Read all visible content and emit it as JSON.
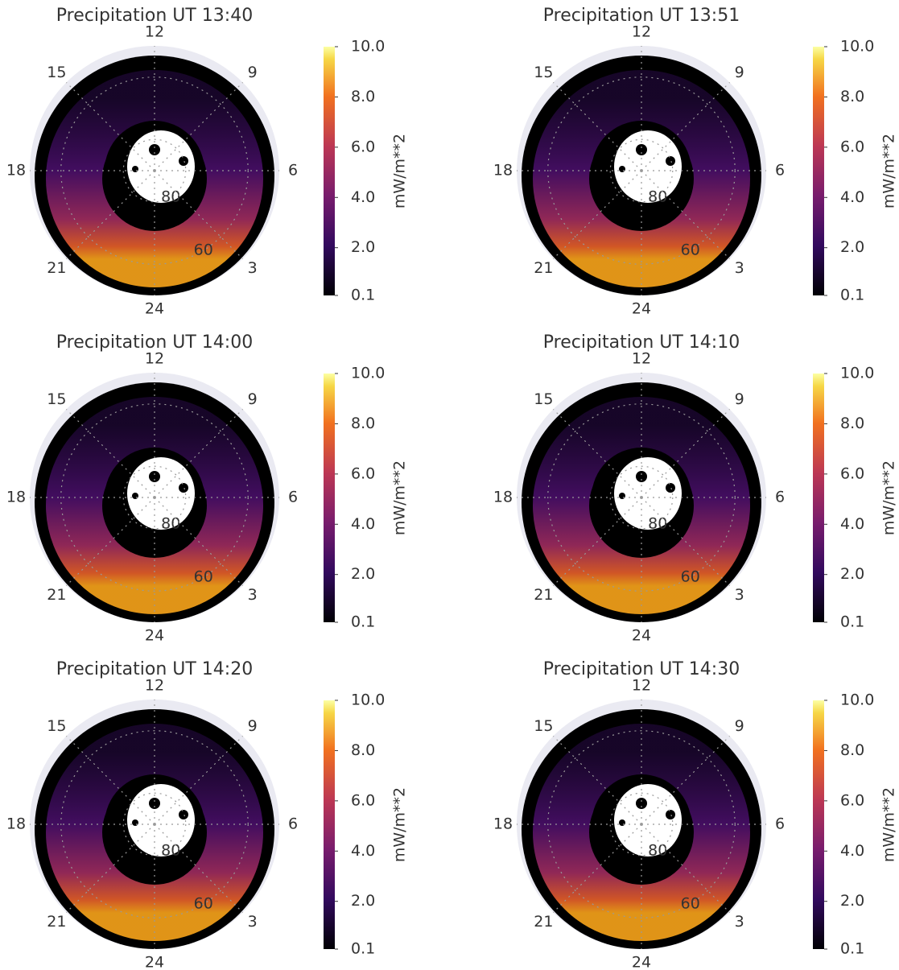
{
  "chart_data": [
    {
      "type": "polar-contour",
      "title": "Precipitation UT 13:40",
      "theta_ticks": [
        12,
        9,
        6,
        3,
        24,
        21,
        18,
        15
      ],
      "rlim": [
        90,
        50
      ],
      "rticks": [
        80,
        60
      ],
      "colorbar": {
        "label": "mW/m**2",
        "lim": [
          0.1,
          10.0
        ],
        "ticks": [
          0.1,
          {
            "value": 2,
            "label": "2.0"
          },
          {
            "value": 4,
            "label": "4.0"
          },
          {
            "value": 6,
            "label": "6.0"
          },
          {
            "value": 8,
            "label": "8.0"
          },
          {
            "value": 10,
            "label": "10.0"
          }
        ]
      }
    },
    {
      "type": "polar-contour",
      "title": "Precipitation UT 13:51",
      "theta_ticks": [
        12,
        9,
        6,
        3,
        24,
        21,
        18,
        15
      ],
      "rlim": [
        90,
        50
      ],
      "rticks": [
        80,
        60
      ],
      "colorbar": {
        "label": "mW/m**2",
        "lim": [
          0.1,
          10.0
        ],
        "ticks": [
          0.1,
          {
            "value": 2,
            "label": "2.0"
          },
          {
            "value": 4,
            "label": "4.0"
          },
          {
            "value": 6,
            "label": "6.0"
          },
          {
            "value": 8,
            "label": "8.0"
          },
          {
            "value": 10,
            "label": "10.0"
          }
        ]
      }
    },
    {
      "type": "polar-contour",
      "title": "Precipitation UT 14:00",
      "theta_ticks": [
        12,
        9,
        6,
        3,
        24,
        21,
        18,
        15
      ],
      "rlim": [
        90,
        50
      ],
      "rticks": [
        80,
        60
      ],
      "colorbar": {
        "label": "mW/m**2",
        "lim": [
          0.1,
          10.0
        ],
        "ticks": [
          0.1,
          {
            "value": 2,
            "label": "2.0"
          },
          {
            "value": 4,
            "label": "4.0"
          },
          {
            "value": 6,
            "label": "6.0"
          },
          {
            "value": 8,
            "label": "8.0"
          },
          {
            "value": 10,
            "label": "10.0"
          }
        ]
      }
    },
    {
      "type": "polar-contour",
      "title": "Precipitation UT 14:10",
      "theta_ticks": [
        12,
        9,
        6,
        3,
        24,
        21,
        18,
        15
      ],
      "rlim": [
        90,
        50
      ],
      "rticks": [
        80,
        60
      ],
      "colorbar": {
        "label": "mW/m**2",
        "lim": [
          0.1,
          10.0
        ],
        "ticks": [
          0.1,
          {
            "value": 2,
            "label": "2.0"
          },
          {
            "value": 4,
            "label": "4.0"
          },
          {
            "value": 6,
            "label": "6.0"
          },
          {
            "value": 8,
            "label": "8.0"
          },
          {
            "value": 10,
            "label": "10.0"
          }
        ]
      }
    },
    {
      "type": "polar-contour",
      "title": "Precipitation UT 14:20",
      "theta_ticks": [
        12,
        9,
        6,
        3,
        24,
        21,
        18,
        15
      ],
      "rlim": [
        90,
        50
      ],
      "rticks": [
        80,
        60
      ],
      "colorbar": {
        "label": "mW/m**2",
        "lim": [
          0.1,
          10.0
        ],
        "ticks": [
          0.1,
          {
            "value": 2,
            "label": "2.0"
          },
          {
            "value": 4,
            "label": "4.0"
          },
          {
            "value": 6,
            "label": "6.0"
          },
          {
            "value": 8,
            "label": "8.0"
          },
          {
            "value": 10,
            "label": "10.0"
          }
        ]
      }
    },
    {
      "type": "polar-contour",
      "title": "Precipitation UT 14:30",
      "theta_ticks": [
        12,
        9,
        6,
        3,
        24,
        21,
        18,
        15
      ],
      "rlim": [
        90,
        50
      ],
      "rticks": [
        80,
        60
      ],
      "colorbar": {
        "label": "mW/m**2",
        "lim": [
          0.1,
          10.0
        ],
        "ticks": [
          0.1,
          {
            "value": 2,
            "label": "2.0"
          },
          {
            "value": 4,
            "label": "4.0"
          },
          {
            "value": 6,
            "label": "6.0"
          },
          {
            "value": 8,
            "label": "8.0"
          },
          {
            "value": 10,
            "label": "10.0"
          }
        ]
      }
    }
  ]
}
